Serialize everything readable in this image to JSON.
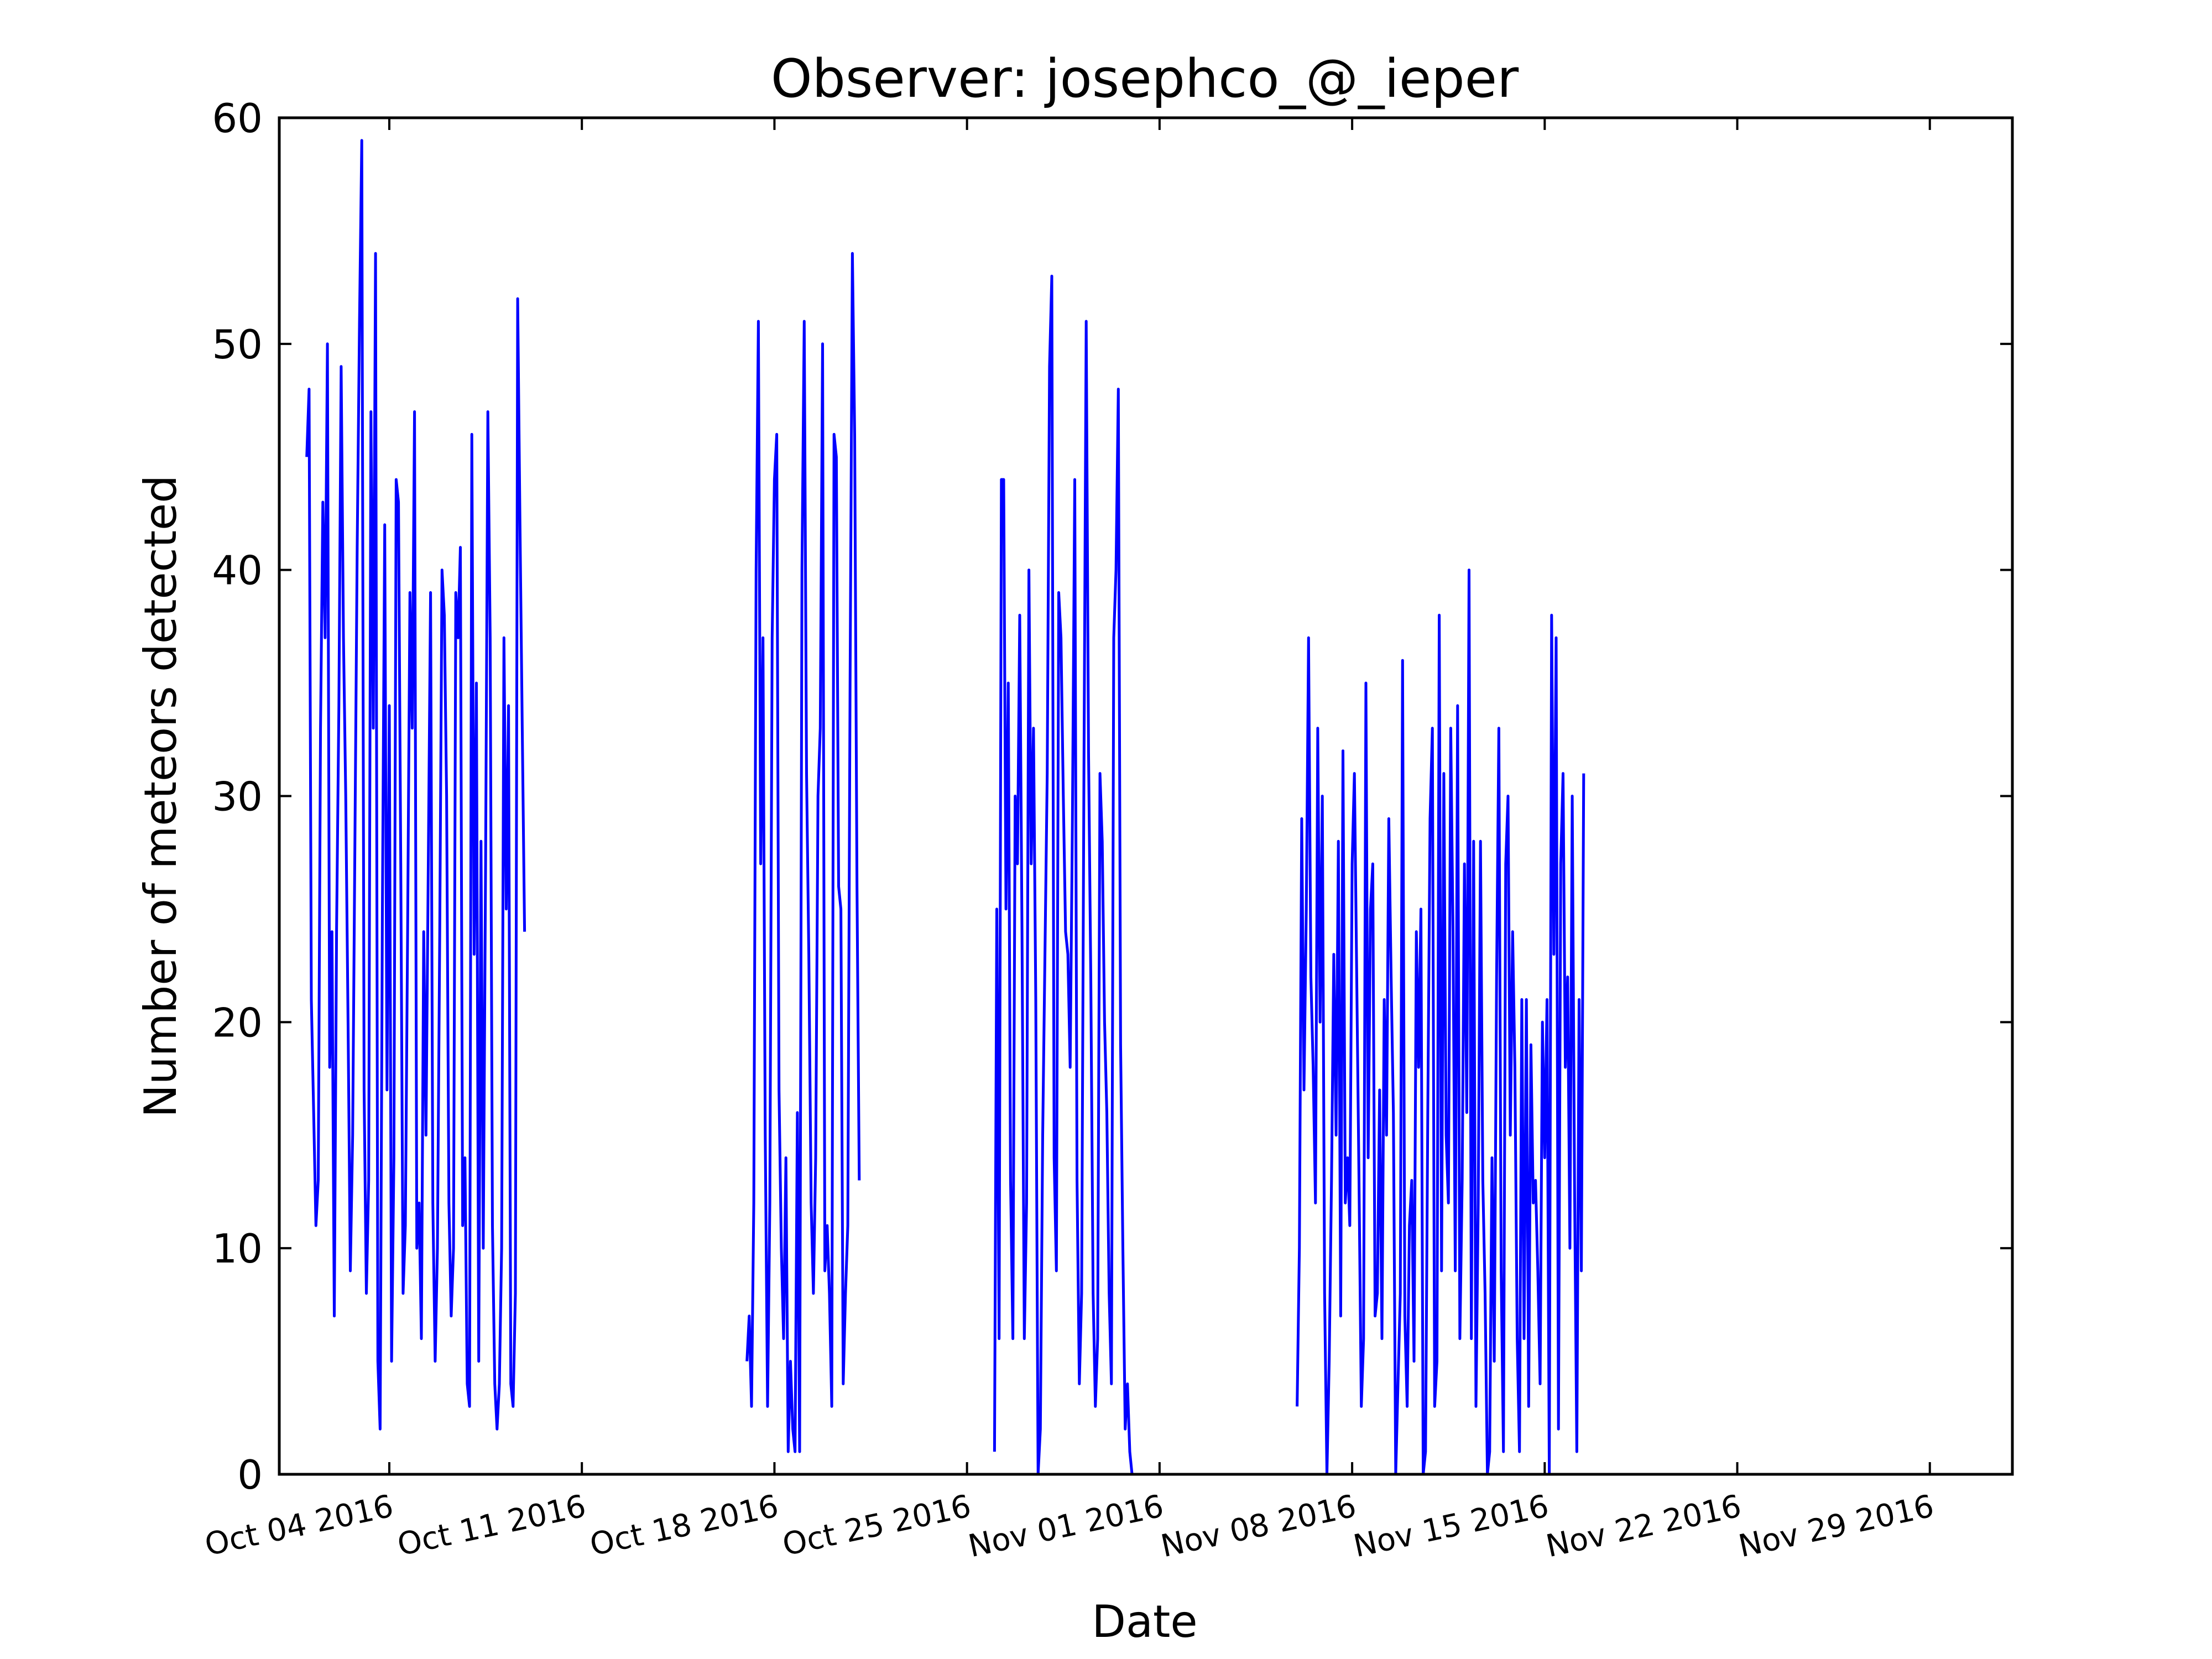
{
  "chart_data": {
    "type": "line",
    "title": "Observer: josephco_@_ieper",
    "xlabel": "Date",
    "ylabel": "Number of meteors detected",
    "ylim": [
      0,
      60
    ],
    "yticks": [
      0,
      10,
      20,
      30,
      40,
      50,
      60
    ],
    "xlim": [
      "2016-09-30",
      "2016-12-02"
    ],
    "xticks": [
      {
        "date": "2016-10-04",
        "label": "Oct 04 2016"
      },
      {
        "date": "2016-10-11",
        "label": "Oct 11 2016"
      },
      {
        "date": "2016-10-18",
        "label": "Oct 18 2016"
      },
      {
        "date": "2016-10-25",
        "label": "Oct 25 2016"
      },
      {
        "date": "2016-11-01",
        "label": "Nov 01 2016"
      },
      {
        "date": "2016-11-08",
        "label": "Nov 08 2016"
      },
      {
        "date": "2016-11-15",
        "label": "Nov 15 2016"
      },
      {
        "date": "2016-11-22",
        "label": "Nov 22 2016"
      },
      {
        "date": "2016-11-29",
        "label": "Nov 29 2016"
      }
    ],
    "grid": false,
    "line_color": "#0000ff",
    "series": [
      {
        "segments": [
          {
            "start": "2016-10-01T00:00",
            "step_hours": 2,
            "values": [
              45,
              48,
              21,
              16,
              11,
              13,
              33,
              43,
              37,
              50,
              18,
              24,
              7,
              24,
              34,
              49,
              37,
              30,
              20,
              9,
              15,
              28,
              41,
              51,
              59,
              17,
              8,
              13,
              47,
              33,
              54,
              5,
              2,
              25,
              42,
              17,
              34,
              5,
              14,
              44,
              43,
              27,
              8,
              11,
              24,
              39,
              33,
              47,
              10,
              12,
              6,
              24,
              15,
              27,
              39,
              12,
              5,
              10,
              24,
              40,
              38,
              30,
              12,
              7,
              10,
              39,
              37,
              41,
              11,
              14,
              4,
              3,
              46,
              23,
              35,
              5,
              28,
              10,
              27,
              47,
              37,
              11,
              4,
              2,
              4,
              10,
              37,
              25,
              34,
              4,
              3,
              8,
              52,
              42,
              33,
              24
            ]
          },
          {
            "start": "2016-10-17T00:00",
            "step_hours": 2,
            "values": [
              5,
              7,
              3,
              12,
              40,
              51,
              27,
              37,
              15,
              3,
              12,
              37,
              44,
              46,
              17,
              10,
              6,
              14,
              1,
              5,
              2,
              1,
              16,
              1,
              40,
              51,
              31,
              23,
              12,
              8,
              14,
              30,
              33,
              50,
              9,
              11,
              8,
              3,
              46,
              45,
              26,
              25,
              4,
              8,
              11,
              35,
              54,
              46,
              26,
              13
            ]
          },
          {
            "start": "2016-10-26T00:00",
            "step_hours": 2,
            "values": [
              1,
              25,
              6,
              44,
              44,
              25,
              35,
              13,
              6,
              30,
              27,
              38,
              24,
              6,
              12,
              40,
              27,
              33,
              21,
              0,
              2,
              15,
              23,
              31,
              49,
              53,
              14,
              9,
              39,
              37,
              30,
              24,
              23,
              18,
              29,
              44,
              13,
              4,
              8,
              31,
              51,
              32,
              22,
              8,
              3,
              6,
              31,
              28,
              20,
              16,
              8,
              4,
              37,
              40,
              48,
              19,
              10,
              2,
              4,
              1,
              0
            ]
          },
          {
            "start": "2016-11-06T00:00",
            "step_hours": 2,
            "values": [
              3,
              10,
              29,
              17,
              25,
              37,
              22,
              18,
              12,
              33,
              20,
              30,
              8,
              0,
              5,
              13,
              23,
              15,
              28,
              7,
              32,
              12,
              14,
              11,
              27,
              31,
              22,
              13,
              3,
              6,
              35,
              14,
              25,
              27,
              7,
              8,
              17,
              6,
              21,
              15,
              29,
              22,
              16,
              0,
              4,
              8,
              36,
              7,
              3,
              11,
              13,
              5,
              24,
              18,
              25,
              0,
              1,
              16,
              29,
              33,
              3,
              5,
              38,
              9,
              31,
              15,
              12,
              33,
              24,
              9,
              34,
              6,
              13,
              27,
              16,
              40,
              6,
              28,
              3,
              12,
              28,
              13,
              8,
              0,
              1,
              14,
              5,
              22,
              33,
              9,
              1,
              27,
              30,
              15,
              24,
              18,
              6,
              1,
              21,
              6,
              21,
              3,
              19,
              12,
              13,
              9,
              4,
              20,
              14,
              21,
              0,
              38,
              23,
              37,
              2,
              27,
              31,
              18,
              22,
              10,
              30,
              13,
              1,
              21,
              9,
              31
            ]
          }
        ]
      }
    ]
  }
}
